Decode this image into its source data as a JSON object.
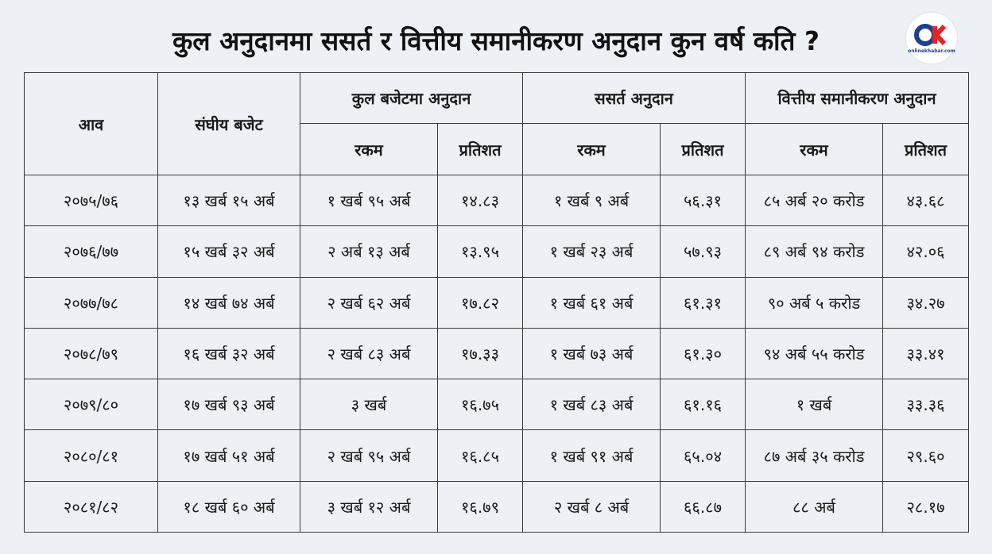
{
  "title": "कुल अनुदानमा ससर्त र वित्तीय समानीकरण अनुदान कुन वर्ष कति ?",
  "logo": {
    "text": "onlinekhabar.com"
  },
  "table": {
    "headers": {
      "year": "आव",
      "budget": "संघीय बजेट",
      "total_grant": "कुल बजेटमा अनुदान",
      "conditional_grant": "ससर्त अनुदान",
      "equalization_grant": "वित्तीय समानीकरण अनुदान",
      "amount": "रकम",
      "percent": "प्रतिशत"
    },
    "rows": [
      [
        "२०७५/७६",
        "१३ खर्ब १५ अर्ब",
        "१ खर्ब ९५ अर्ब",
        "१४.८३",
        "१ खर्ब ९ अर्ब",
        "५६.३१",
        "८५ अर्ब २० करोड",
        "४३.६८"
      ],
      [
        "२०७६/७७",
        "१५ खर्ब ३२ अर्ब",
        "२ अर्ब १३ अर्ब",
        "१३.९५",
        "१ खर्ब २३ अर्ब",
        "५७.९३",
        "८९ अर्ब ९४ करोड",
        "४२.०६"
      ],
      [
        "२०७७/७८",
        "१४ खर्ब ७४ अर्ब",
        "२ खर्ब ६२ अर्ब",
        "१७.८२",
        "१ खर्ब ६१ अर्ब",
        "६१.३१",
        "९० अर्ब ५ करोड",
        "३४.२७"
      ],
      [
        "२०७८/७९",
        "१६ खर्ब ३२ अर्ब",
        "२ खर्ब ८३ अर्ब",
        "१७.३३",
        "१ खर्ब ७३ अर्ब",
        "६१.३०",
        "९४ अर्ब ५५ करोड",
        "३३.४१"
      ],
      [
        "२०७९/८०",
        "१७ खर्ब ९३ अर्ब",
        "३ खर्ब",
        "१६.७५",
        "१ खर्ब ८३ अर्ब",
        "६१.१६",
        "१ खर्ब",
        "३३.३६"
      ],
      [
        "२०८०/८१",
        "१७ खर्ब ५१ अर्ब",
        "२ खर्ब ९५ अर्ब",
        "१६.८५",
        "१ खर्ब ९१ अर्ब",
        "६५.०४",
        "८७ अर्ब ३५ करोड",
        "२९.६०"
      ],
      [
        "२०८१/८२",
        "१८ खर्ब ६० अर्ब",
        "३ खर्ब १२ अर्ब",
        "१६.७९",
        "२ खर्ब ८ अर्ब",
        "६६.८७",
        "८८ अर्ब",
        "२८.१७"
      ]
    ]
  }
}
